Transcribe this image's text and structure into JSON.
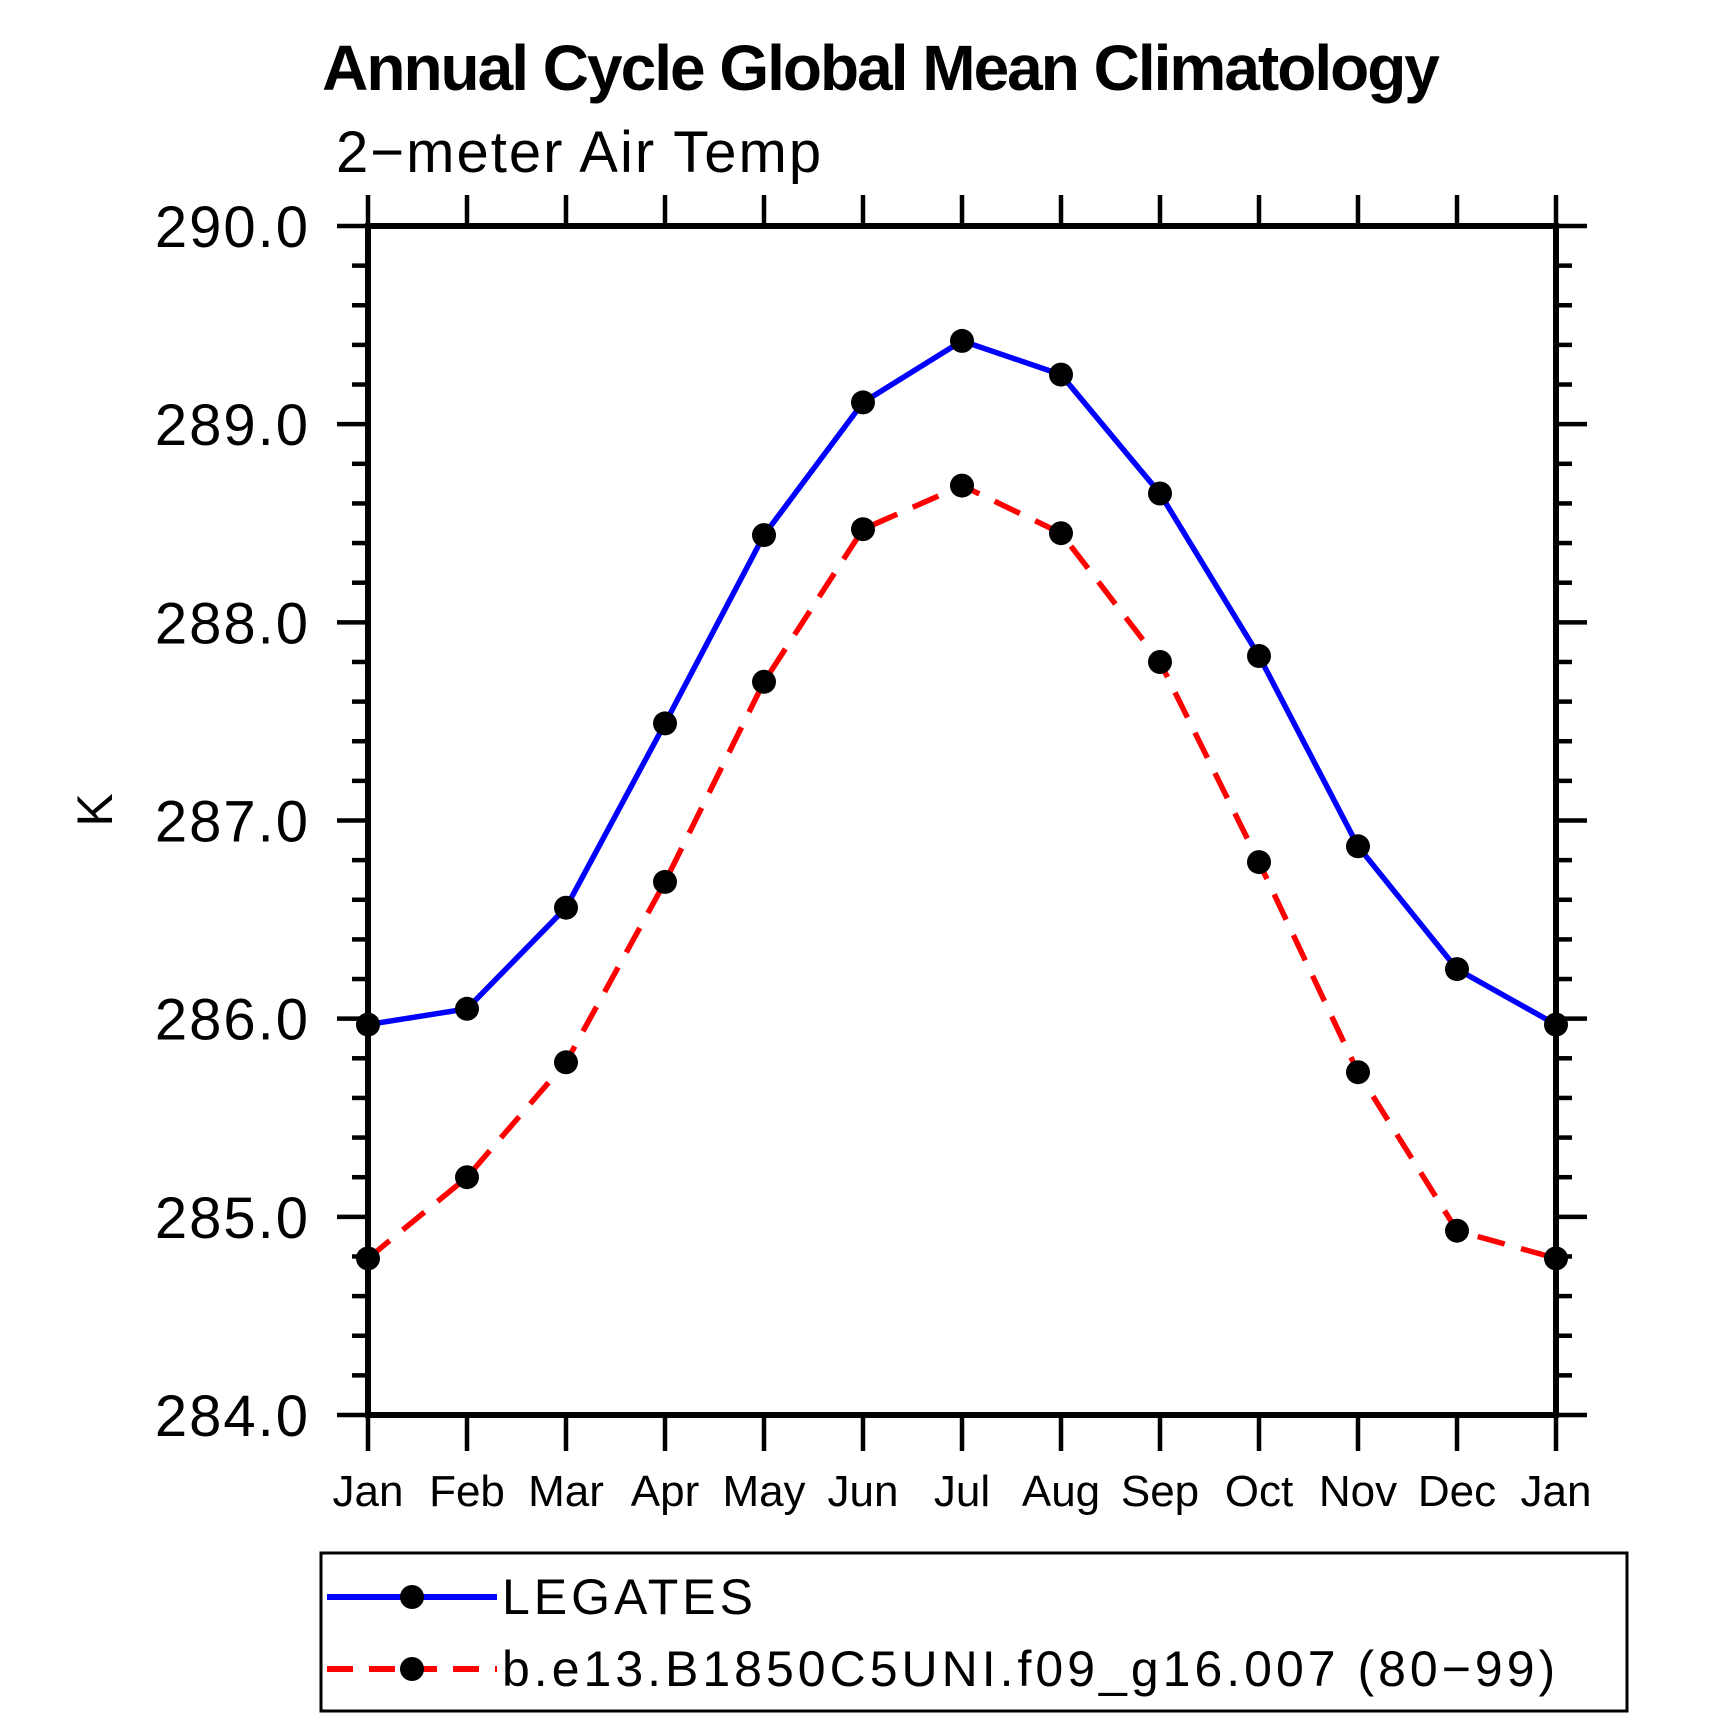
{
  "title": "Annual Cycle Global Mean Climatology",
  "subtitle": "2−meter Air Temp",
  "y_axis_label": "K",
  "legend": {
    "items": [
      {
        "label": "LEGATES",
        "color": "#0000ff",
        "style": "solid"
      },
      {
        "label": "b.e13.B1850C5UNI.f09_g16.007 (80−99)",
        "color": "#ff0000",
        "style": "dashed"
      }
    ]
  },
  "chart_data": {
    "type": "line",
    "title": "Annual Cycle Global Mean Climatology",
    "subtitle": "2−meter Air Temp",
    "xlabel": "",
    "ylabel": "K",
    "categories": [
      "Jan",
      "Feb",
      "Mar",
      "Apr",
      "May",
      "Jun",
      "Jul",
      "Aug",
      "Sep",
      "Oct",
      "Nov",
      "Dec",
      "Jan"
    ],
    "ylim": [
      284.0,
      290.0
    ],
    "ytick_step": 1.0,
    "yminor_step": 0.2,
    "ytick_labels": [
      "284.0",
      "285.0",
      "286.0",
      "287.0",
      "288.0",
      "289.0",
      "290.0"
    ],
    "grid": false,
    "legend_position": "bottom-left",
    "marker": {
      "shape": "circle",
      "color": "#000000"
    },
    "series": [
      {
        "name": "LEGATES",
        "color": "#0000ff",
        "line_style": "solid",
        "values": [
          285.97,
          286.05,
          286.56,
          287.49,
          288.44,
          289.11,
          289.42,
          289.25,
          288.65,
          287.83,
          286.87,
          286.25,
          285.97
        ]
      },
      {
        "name": "b.e13.B1850C5UNI.f09_g16.007 (80−99)",
        "color": "#ff0000",
        "line_style": "dashed",
        "values": [
          284.79,
          285.2,
          285.78,
          286.69,
          287.7,
          288.47,
          288.69,
          288.45,
          287.8,
          286.79,
          285.73,
          284.93,
          284.79
        ]
      }
    ]
  }
}
